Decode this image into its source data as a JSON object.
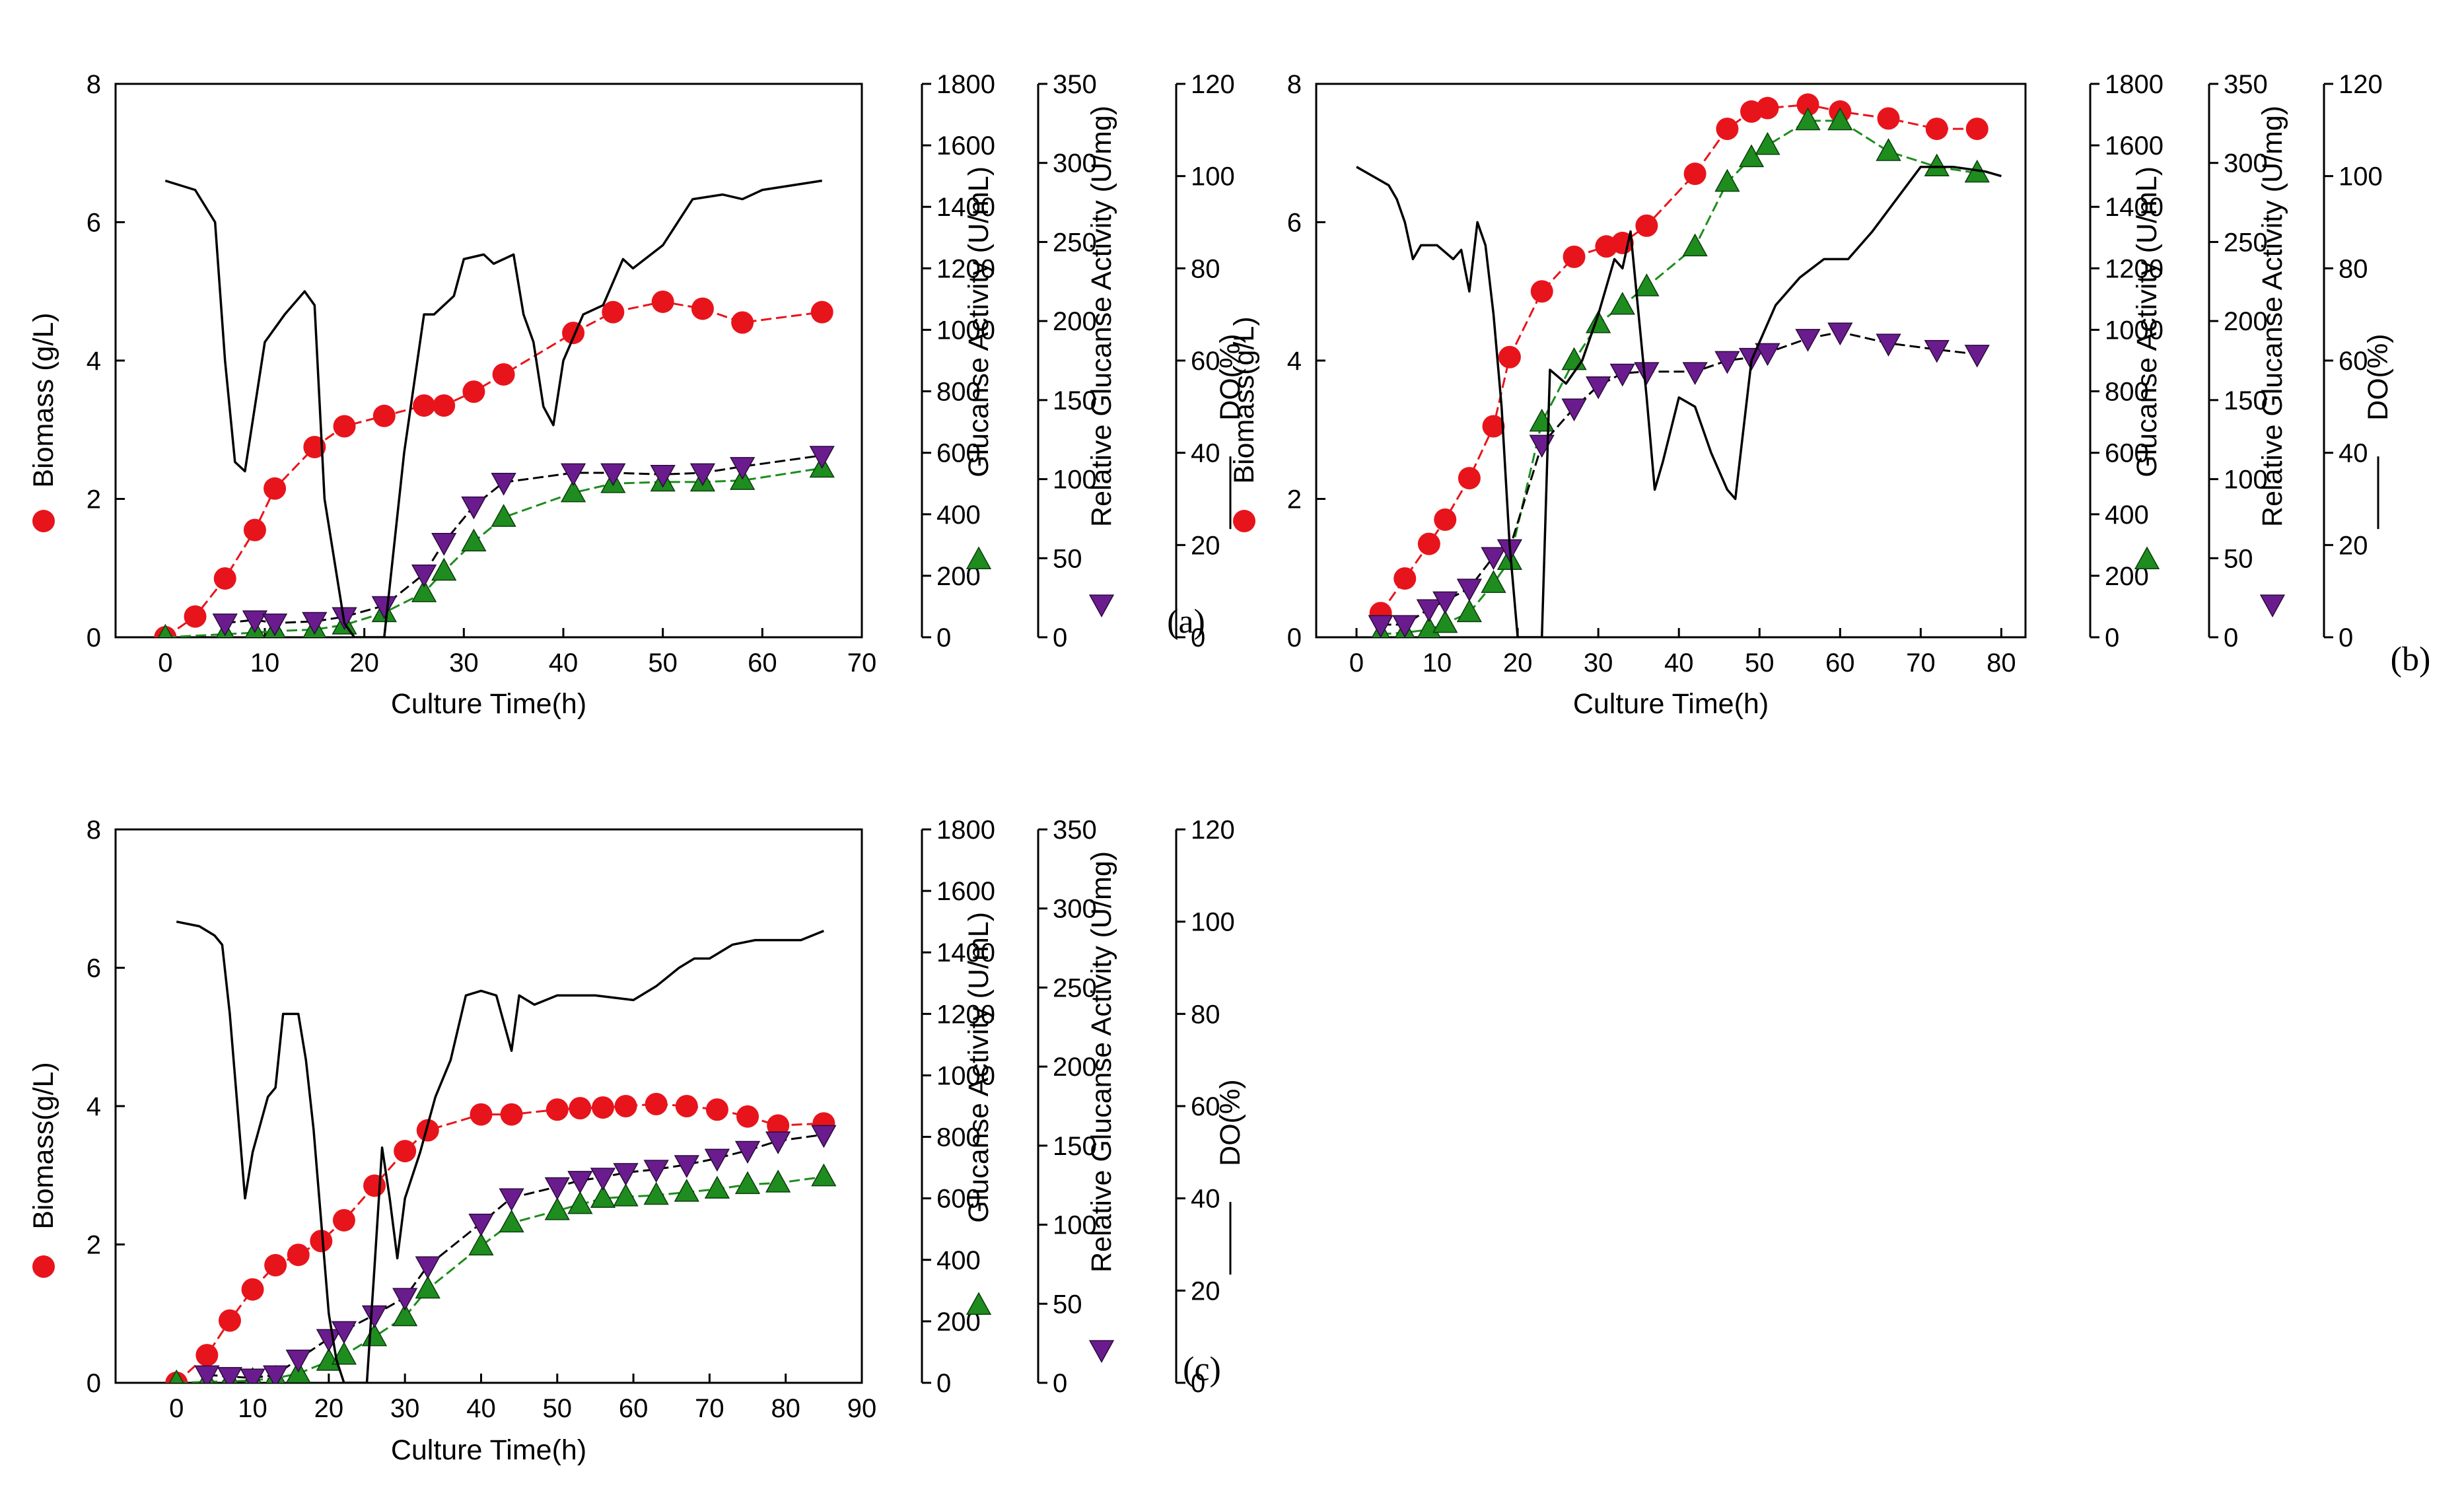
{
  "chart_data": [
    {
      "type": "line",
      "panel_label": "(a)",
      "xlabel": "Culture Time(h)",
      "xlim": [
        -5,
        70
      ],
      "xticks": [
        0,
        10,
        20,
        30,
        40,
        50,
        60,
        70
      ],
      "axes": {
        "biomass": {
          "label": "Biomass (g/L)",
          "lim": [
            0,
            8
          ],
          "ticks": [
            0,
            2,
            4,
            6,
            8
          ]
        },
        "glucanase": {
          "label": "Glucanse Activity (U/mL)",
          "lim": [
            0,
            1800
          ],
          "ticks": [
            0,
            200,
            400,
            600,
            800,
            1000,
            1200,
            1400,
            1600,
            1800
          ]
        },
        "relative": {
          "label": "Relative Glucanse Activity (U/mg)",
          "lim": [
            0,
            350
          ],
          "ticks": [
            0,
            50,
            100,
            150,
            200,
            250,
            300,
            350
          ]
        },
        "do": {
          "label": "DO(%)",
          "lim": [
            0,
            120
          ],
          "ticks": [
            0,
            20,
            40,
            60,
            80,
            100,
            120
          ]
        }
      },
      "series": [
        {
          "name": "Biomass",
          "axis": "biomass",
          "marker": "circle",
          "color": "#e8141b",
          "line_color": "#e8141b",
          "x": [
            0,
            3,
            6,
            9,
            11,
            15,
            18,
            22,
            26,
            28,
            31,
            34,
            41,
            45,
            50,
            54,
            58,
            66
          ],
          "y": [
            0,
            0.3,
            0.85,
            1.55,
            2.15,
            2.75,
            3.05,
            3.2,
            3.35,
            3.35,
            3.55,
            3.8,
            4.4,
            4.7,
            4.85,
            4.75,
            4.55,
            4.7
          ]
        },
        {
          "name": "Glucanase Activity",
          "axis": "glucanase",
          "marker": "triangle-up",
          "color": "#1e8c1e",
          "line_color": "#1e8c1e",
          "x": [
            0,
            6,
            9,
            11,
            15,
            18,
            22,
            26,
            28,
            31,
            34,
            41,
            45,
            50,
            54,
            58,
            66
          ],
          "y": [
            0,
            10,
            15,
            20,
            25,
            40,
            80,
            145,
            215,
            310,
            390,
            470,
            500,
            505,
            505,
            510,
            550
          ]
        },
        {
          "name": "Relative Glucanase Activity",
          "axis": "relative",
          "marker": "triangle-down",
          "color": "#6a1c8e",
          "line_color": "#000000",
          "x": [
            6,
            9,
            11,
            15,
            18,
            22,
            26,
            28,
            31,
            34,
            41,
            45,
            50,
            54,
            58,
            66
          ],
          "y": [
            9,
            11,
            9,
            10,
            13,
            20,
            40,
            60,
            83,
            98,
            104,
            104,
            103,
            104,
            108,
            115
          ]
        },
        {
          "name": "DO",
          "axis": "do",
          "marker": "none",
          "color": "#000000",
          "line_color": "#000000",
          "x": [
            0,
            3,
            5,
            6,
            7,
            8,
            10,
            12,
            14,
            15,
            16,
            18,
            19,
            20,
            21,
            22,
            24,
            26,
            27,
            29,
            30,
            32,
            33,
            34,
            35,
            36,
            37,
            38,
            39,
            40,
            42,
            44,
            46,
            47,
            50,
            53,
            56,
            58,
            60,
            63,
            66
          ],
          "y": [
            99,
            97,
            90,
            60,
            38,
            36,
            64,
            70,
            75,
            72,
            30,
            3,
            0,
            0,
            0,
            0,
            40,
            70,
            70,
            74,
            82,
            83,
            81,
            82,
            83,
            70,
            64,
            50,
            46,
            60,
            70,
            72,
            82,
            80,
            85,
            95,
            96,
            95,
            97,
            98,
            99
          ]
        }
      ]
    },
    {
      "type": "line",
      "panel_label": "(b)",
      "xlabel": "Culture Time(h)",
      "xlim": [
        -5,
        83
      ],
      "xticks": [
        0,
        10,
        20,
        30,
        40,
        50,
        60,
        70,
        80
      ],
      "axes": {
        "biomass": {
          "label": "Biomass(g/L)",
          "lim": [
            0,
            8
          ],
          "ticks": [
            0,
            2,
            4,
            6,
            8
          ]
        },
        "glucanase": {
          "label": "Glucanse Activity (U/mL)",
          "lim": [
            0,
            1800
          ],
          "ticks": [
            0,
            200,
            400,
            600,
            800,
            1000,
            1200,
            1400,
            1600,
            1800
          ]
        },
        "relative": {
          "label": "Relative Glucanse Activity (U/mg)",
          "lim": [
            0,
            350
          ],
          "ticks": [
            0,
            50,
            100,
            150,
            200,
            250,
            300,
            350
          ]
        },
        "do": {
          "label": "DO(%)",
          "lim": [
            0,
            120
          ],
          "ticks": [
            0,
            20,
            40,
            60,
            80,
            100,
            120
          ]
        }
      },
      "series": [
        {
          "name": "Biomass",
          "axis": "biomass",
          "marker": "circle",
          "color": "#e8141b",
          "line_color": "#e8141b",
          "x": [
            3,
            6,
            9,
            11,
            14,
            17,
            19,
            23,
            27,
            31,
            33,
            36,
            42,
            46,
            49,
            51,
            56,
            60,
            66,
            72,
            77
          ],
          "y": [
            0.35,
            0.85,
            1.35,
            1.7,
            2.3,
            3.05,
            4.05,
            5.0,
            5.5,
            5.65,
            5.7,
            5.95,
            6.7,
            7.35,
            7.6,
            7.65,
            7.7,
            7.6,
            7.5,
            7.35,
            7.35
          ]
        },
        {
          "name": "Glucanase Activity",
          "axis": "glucanase",
          "marker": "triangle-up",
          "color": "#1e8c1e",
          "line_color": "#1e8c1e",
          "x": [
            3,
            6,
            9,
            11,
            14,
            17,
            19,
            23,
            27,
            30,
            33,
            36,
            42,
            46,
            49,
            51,
            56,
            60,
            66,
            72,
            77
          ],
          "y": [
            10,
            15,
            25,
            45,
            80,
            175,
            250,
            700,
            900,
            1020,
            1080,
            1140,
            1270,
            1480,
            1560,
            1600,
            1680,
            1680,
            1580,
            1530,
            1510
          ]
        },
        {
          "name": "Relative Glucanase Activity",
          "axis": "relative",
          "marker": "triangle-down",
          "color": "#6a1c8e",
          "line_color": "#000000",
          "x": [
            3,
            6,
            9,
            11,
            14,
            17,
            19,
            23,
            27,
            30,
            33,
            36,
            42,
            46,
            49,
            51,
            56,
            60,
            66,
            72,
            77
          ],
          "y": [
            8,
            8,
            18,
            23,
            31,
            51,
            56,
            122,
            145,
            159,
            167,
            168,
            168,
            175,
            177,
            180,
            189,
            193,
            186,
            182,
            179
          ]
        },
        {
          "name": "DO",
          "axis": "do",
          "marker": "none",
          "color": "#000000",
          "line_color": "#000000",
          "x": [
            0,
            2,
            4,
            5,
            6,
            7,
            8,
            10,
            12,
            13,
            14,
            15,
            16,
            17,
            18,
            19,
            20,
            21,
            22,
            23,
            24,
            26,
            28,
            30,
            32,
            33,
            34,
            35,
            36,
            37,
            38,
            40,
            42,
            44,
            46,
            47,
            49,
            52,
            55,
            58,
            61,
            64,
            67,
            70,
            74,
            78,
            80
          ],
          "y": [
            102,
            100,
            98,
            95,
            90,
            82,
            85,
            85,
            82,
            84,
            75,
            90,
            85,
            70,
            50,
            20,
            0,
            0,
            0,
            0,
            58,
            55,
            60,
            70,
            82,
            80,
            88,
            70,
            52,
            32,
            38,
            52,
            50,
            40,
            32,
            30,
            60,
            72,
            78,
            82,
            82,
            88,
            95,
            102,
            102,
            101,
            100
          ]
        }
      ]
    },
    {
      "type": "line",
      "panel_label": "(c)",
      "xlabel": "Culture Time(h)",
      "xlim": [
        -8,
        90
      ],
      "xticks": [
        0,
        10,
        20,
        30,
        40,
        50,
        60,
        70,
        80,
        90
      ],
      "axes": {
        "biomass": {
          "label": "Biomass(g/L)",
          "lim": [
            0,
            8
          ],
          "ticks": [
            0,
            2,
            4,
            6,
            8
          ]
        },
        "glucanase": {
          "label": "Glucanse Activity (U/mL)",
          "lim": [
            0,
            1800
          ],
          "ticks": [
            0,
            200,
            400,
            600,
            800,
            1000,
            1200,
            1400,
            1600,
            1800
          ]
        },
        "relative": {
          "label": "Relative Glucanse Activity (U/mg)",
          "lim": [
            0,
            350
          ],
          "ticks": [
            0,
            50,
            100,
            150,
            200,
            250,
            300,
            350
          ]
        },
        "do": {
          "label": "DO(%)",
          "lim": [
            0,
            120
          ],
          "ticks": [
            0,
            20,
            40,
            60,
            80,
            100,
            120
          ]
        }
      },
      "series": [
        {
          "name": "Biomass",
          "axis": "biomass",
          "marker": "circle",
          "color": "#e8141b",
          "line_color": "#e8141b",
          "x": [
            0,
            4,
            7,
            10,
            13,
            16,
            19,
            22,
            26,
            30,
            33,
            40,
            44,
            50,
            53,
            56,
            59,
            63,
            67,
            71,
            75,
            79,
            85
          ],
          "y": [
            0,
            0.4,
            0.9,
            1.35,
            1.7,
            1.85,
            2.05,
            2.35,
            2.85,
            3.35,
            3.65,
            3.88,
            3.88,
            3.95,
            3.97,
            3.98,
            4.0,
            4.03,
            4.0,
            3.95,
            3.85,
            3.72,
            3.75
          ]
        },
        {
          "name": "Glucanase Activity",
          "axis": "glucanase",
          "marker": "triangle-up",
          "color": "#1e8c1e",
          "line_color": "#1e8c1e",
          "x": [
            0,
            4,
            7,
            10,
            13,
            16,
            20,
            22,
            26,
            30,
            33,
            40,
            44,
            50,
            53,
            56,
            59,
            63,
            67,
            71,
            75,
            79,
            85
          ],
          "y": [
            0,
            3,
            5,
            8,
            15,
            30,
            70,
            90,
            150,
            215,
            305,
            445,
            520,
            560,
            580,
            600,
            605,
            610,
            620,
            630,
            645,
            650,
            670
          ]
        },
        {
          "name": "Relative Glucanase Activity",
          "axis": "relative",
          "marker": "triangle-down",
          "color": "#6a1c8e",
          "line_color": "#000000",
          "x": [
            4,
            7,
            10,
            13,
            16,
            20,
            22,
            26,
            30,
            33,
            40,
            44,
            50,
            53,
            56,
            59,
            63,
            67,
            71,
            75,
            79,
            85
          ],
          "y": [
            5,
            4,
            3,
            5,
            15,
            28,
            33,
            43,
            54,
            74,
            101,
            117,
            124,
            128,
            130,
            133,
            135,
            138,
            142,
            147,
            153,
            157
          ]
        },
        {
          "name": "DO",
          "axis": "do",
          "marker": "none",
          "color": "#000000",
          "line_color": "#000000",
          "x": [
            0,
            3,
            5,
            6,
            7,
            8,
            9,
            10,
            12,
            13,
            14,
            16,
            17,
            18,
            19,
            20,
            21,
            22,
            24,
            25,
            26,
            27,
            28,
            29,
            30,
            31,
            32,
            34,
            36,
            38,
            40,
            42,
            43,
            44,
            45,
            47,
            50,
            55,
            60,
            63,
            66,
            68,
            70,
            73,
            76,
            80,
            82,
            85
          ],
          "y": [
            100,
            99,
            97,
            95,
            80,
            60,
            40,
            50,
            62,
            64,
            80,
            80,
            70,
            55,
            35,
            15,
            5,
            0,
            0,
            0,
            25,
            51,
            40,
            27,
            40,
            45,
            50,
            62,
            70,
            84,
            85,
            84,
            78,
            72,
            84,
            82,
            84,
            84,
            83,
            86,
            90,
            92,
            92,
            95,
            96,
            96,
            96,
            98
          ]
        }
      ]
    }
  ]
}
